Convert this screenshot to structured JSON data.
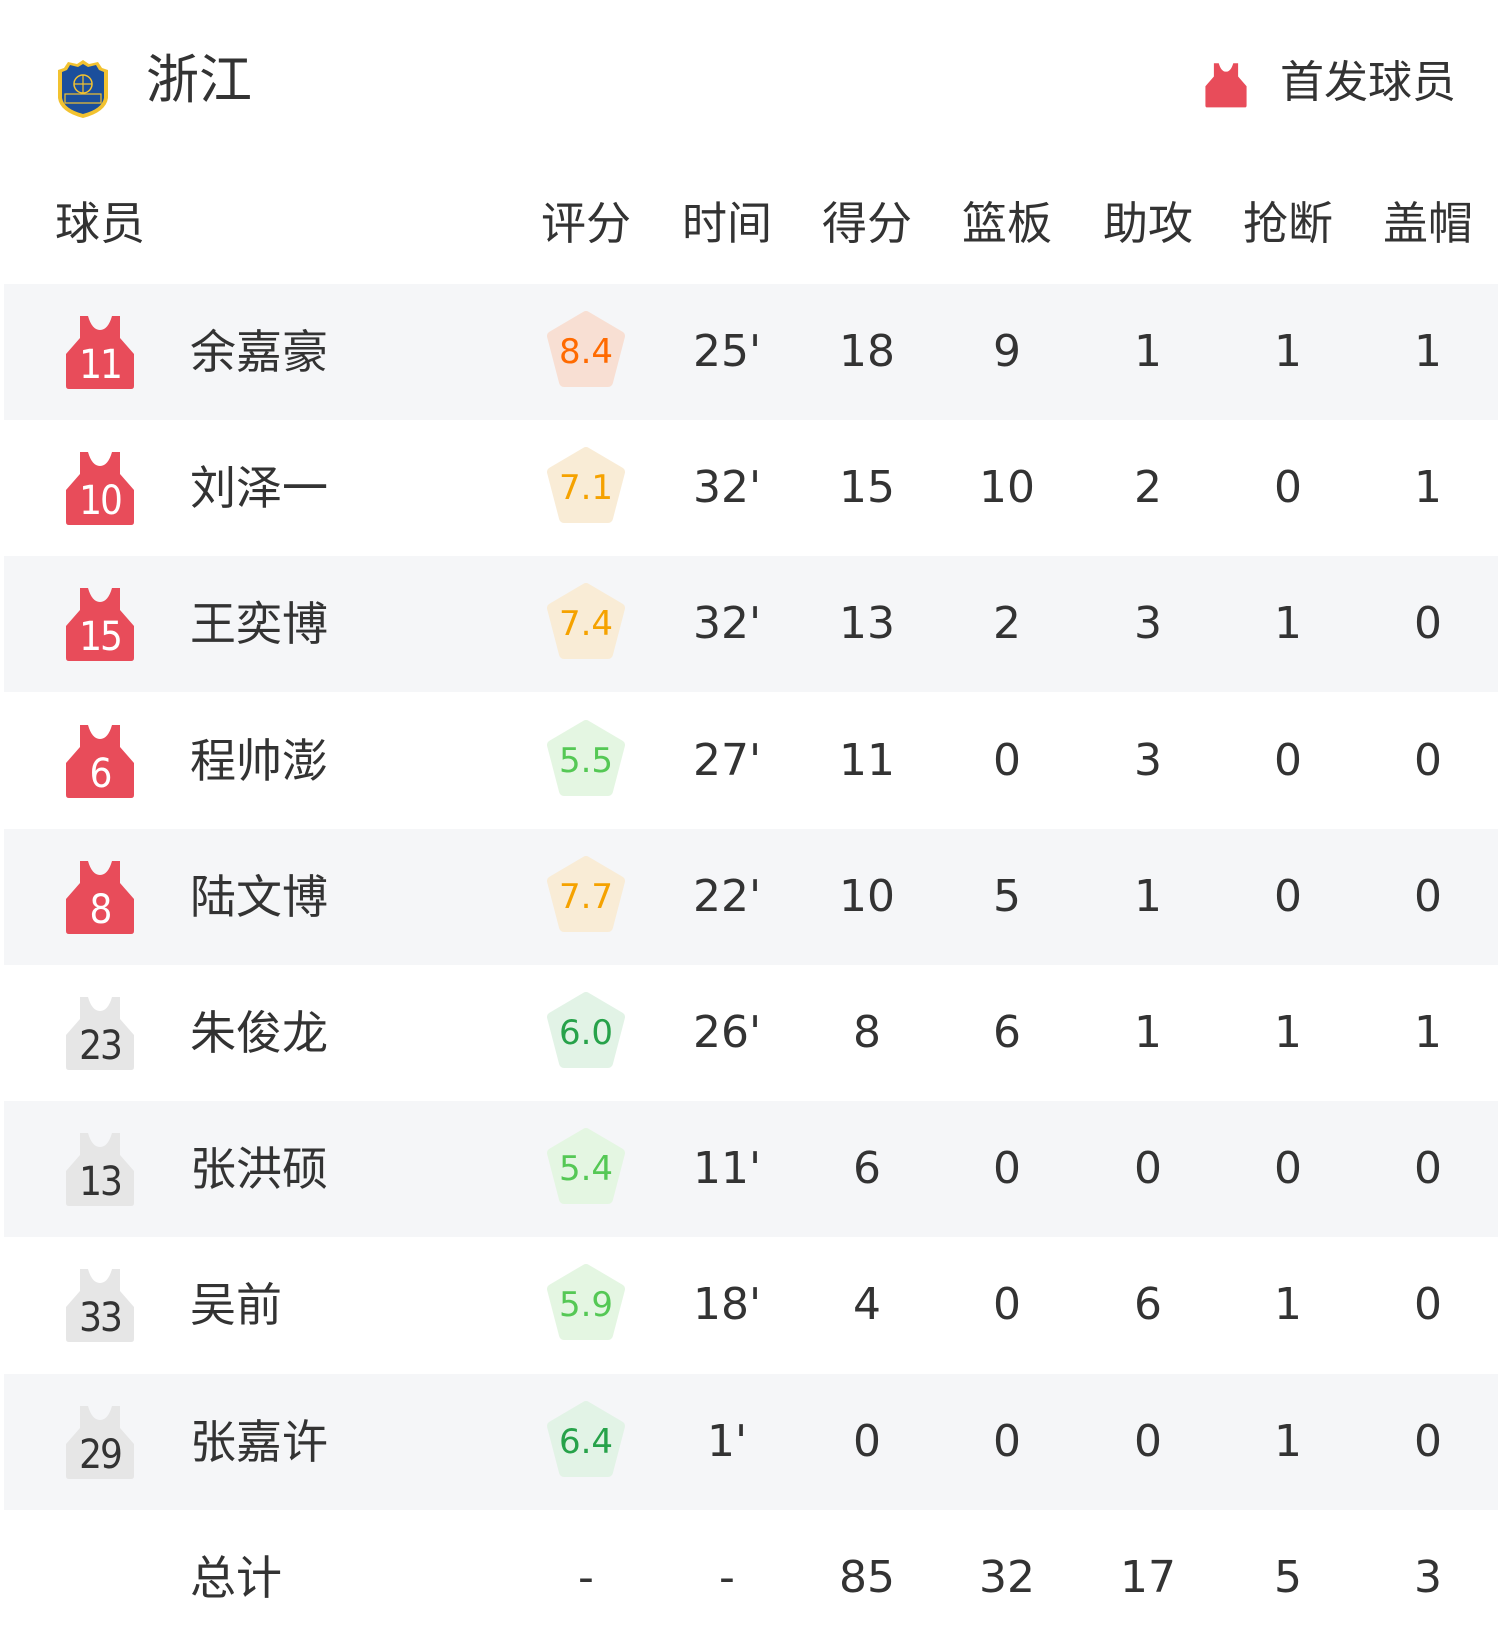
{
  "team": {
    "name": "浙江",
    "logo_text": "浙江篮协"
  },
  "legend": {
    "label": "首发球员",
    "icon": "jersey-icon",
    "color": "#e84c5a"
  },
  "columns": [
    "球员",
    "评分",
    "时间",
    "得分",
    "篮板",
    "助攻",
    "抢断",
    "盖帽"
  ],
  "colors": {
    "starter_jersey": "#e84c5a",
    "bench_jersey": "#e6e6e6",
    "row_alt": "#f5f6f8"
  },
  "players": [
    {
      "number": "11",
      "name": "余嘉豪",
      "starter": true,
      "rating": "8.4",
      "time": "25'",
      "points": "18",
      "rebounds": "9",
      "assists": "1",
      "steals": "1",
      "blocks": "1"
    },
    {
      "number": "10",
      "name": "刘泽一",
      "starter": true,
      "rating": "7.1",
      "time": "32'",
      "points": "15",
      "rebounds": "10",
      "assists": "2",
      "steals": "0",
      "blocks": "1"
    },
    {
      "number": "15",
      "name": "王奕博",
      "starter": true,
      "rating": "7.4",
      "time": "32'",
      "points": "13",
      "rebounds": "2",
      "assists": "3",
      "steals": "1",
      "blocks": "0"
    },
    {
      "number": "6",
      "name": "程帅澎",
      "starter": true,
      "rating": "5.5",
      "time": "27'",
      "points": "11",
      "rebounds": "0",
      "assists": "3",
      "steals": "0",
      "blocks": "0"
    },
    {
      "number": "8",
      "name": "陆文博",
      "starter": true,
      "rating": "7.7",
      "time": "22'",
      "points": "10",
      "rebounds": "5",
      "assists": "1",
      "steals": "0",
      "blocks": "0"
    },
    {
      "number": "23",
      "name": "朱俊龙",
      "starter": false,
      "rating": "6.0",
      "time": "26'",
      "points": "8",
      "rebounds": "6",
      "assists": "1",
      "steals": "1",
      "blocks": "1"
    },
    {
      "number": "13",
      "name": "张洪硕",
      "starter": false,
      "rating": "5.4",
      "time": "11'",
      "points": "6",
      "rebounds": "0",
      "assists": "0",
      "steals": "0",
      "blocks": "0"
    },
    {
      "number": "33",
      "name": "吴前",
      "starter": false,
      "rating": "5.9",
      "time": "18'",
      "points": "4",
      "rebounds": "0",
      "assists": "6",
      "steals": "1",
      "blocks": "0"
    },
    {
      "number": "29",
      "name": "张嘉许",
      "starter": false,
      "rating": "6.4",
      "time": "1'",
      "points": "0",
      "rebounds": "0",
      "assists": "0",
      "steals": "1",
      "blocks": "0"
    }
  ],
  "totals": {
    "label": "总计",
    "rating": "-",
    "time": "-",
    "points": "85",
    "rebounds": "32",
    "assists": "17",
    "steals": "5",
    "blocks": "3"
  }
}
